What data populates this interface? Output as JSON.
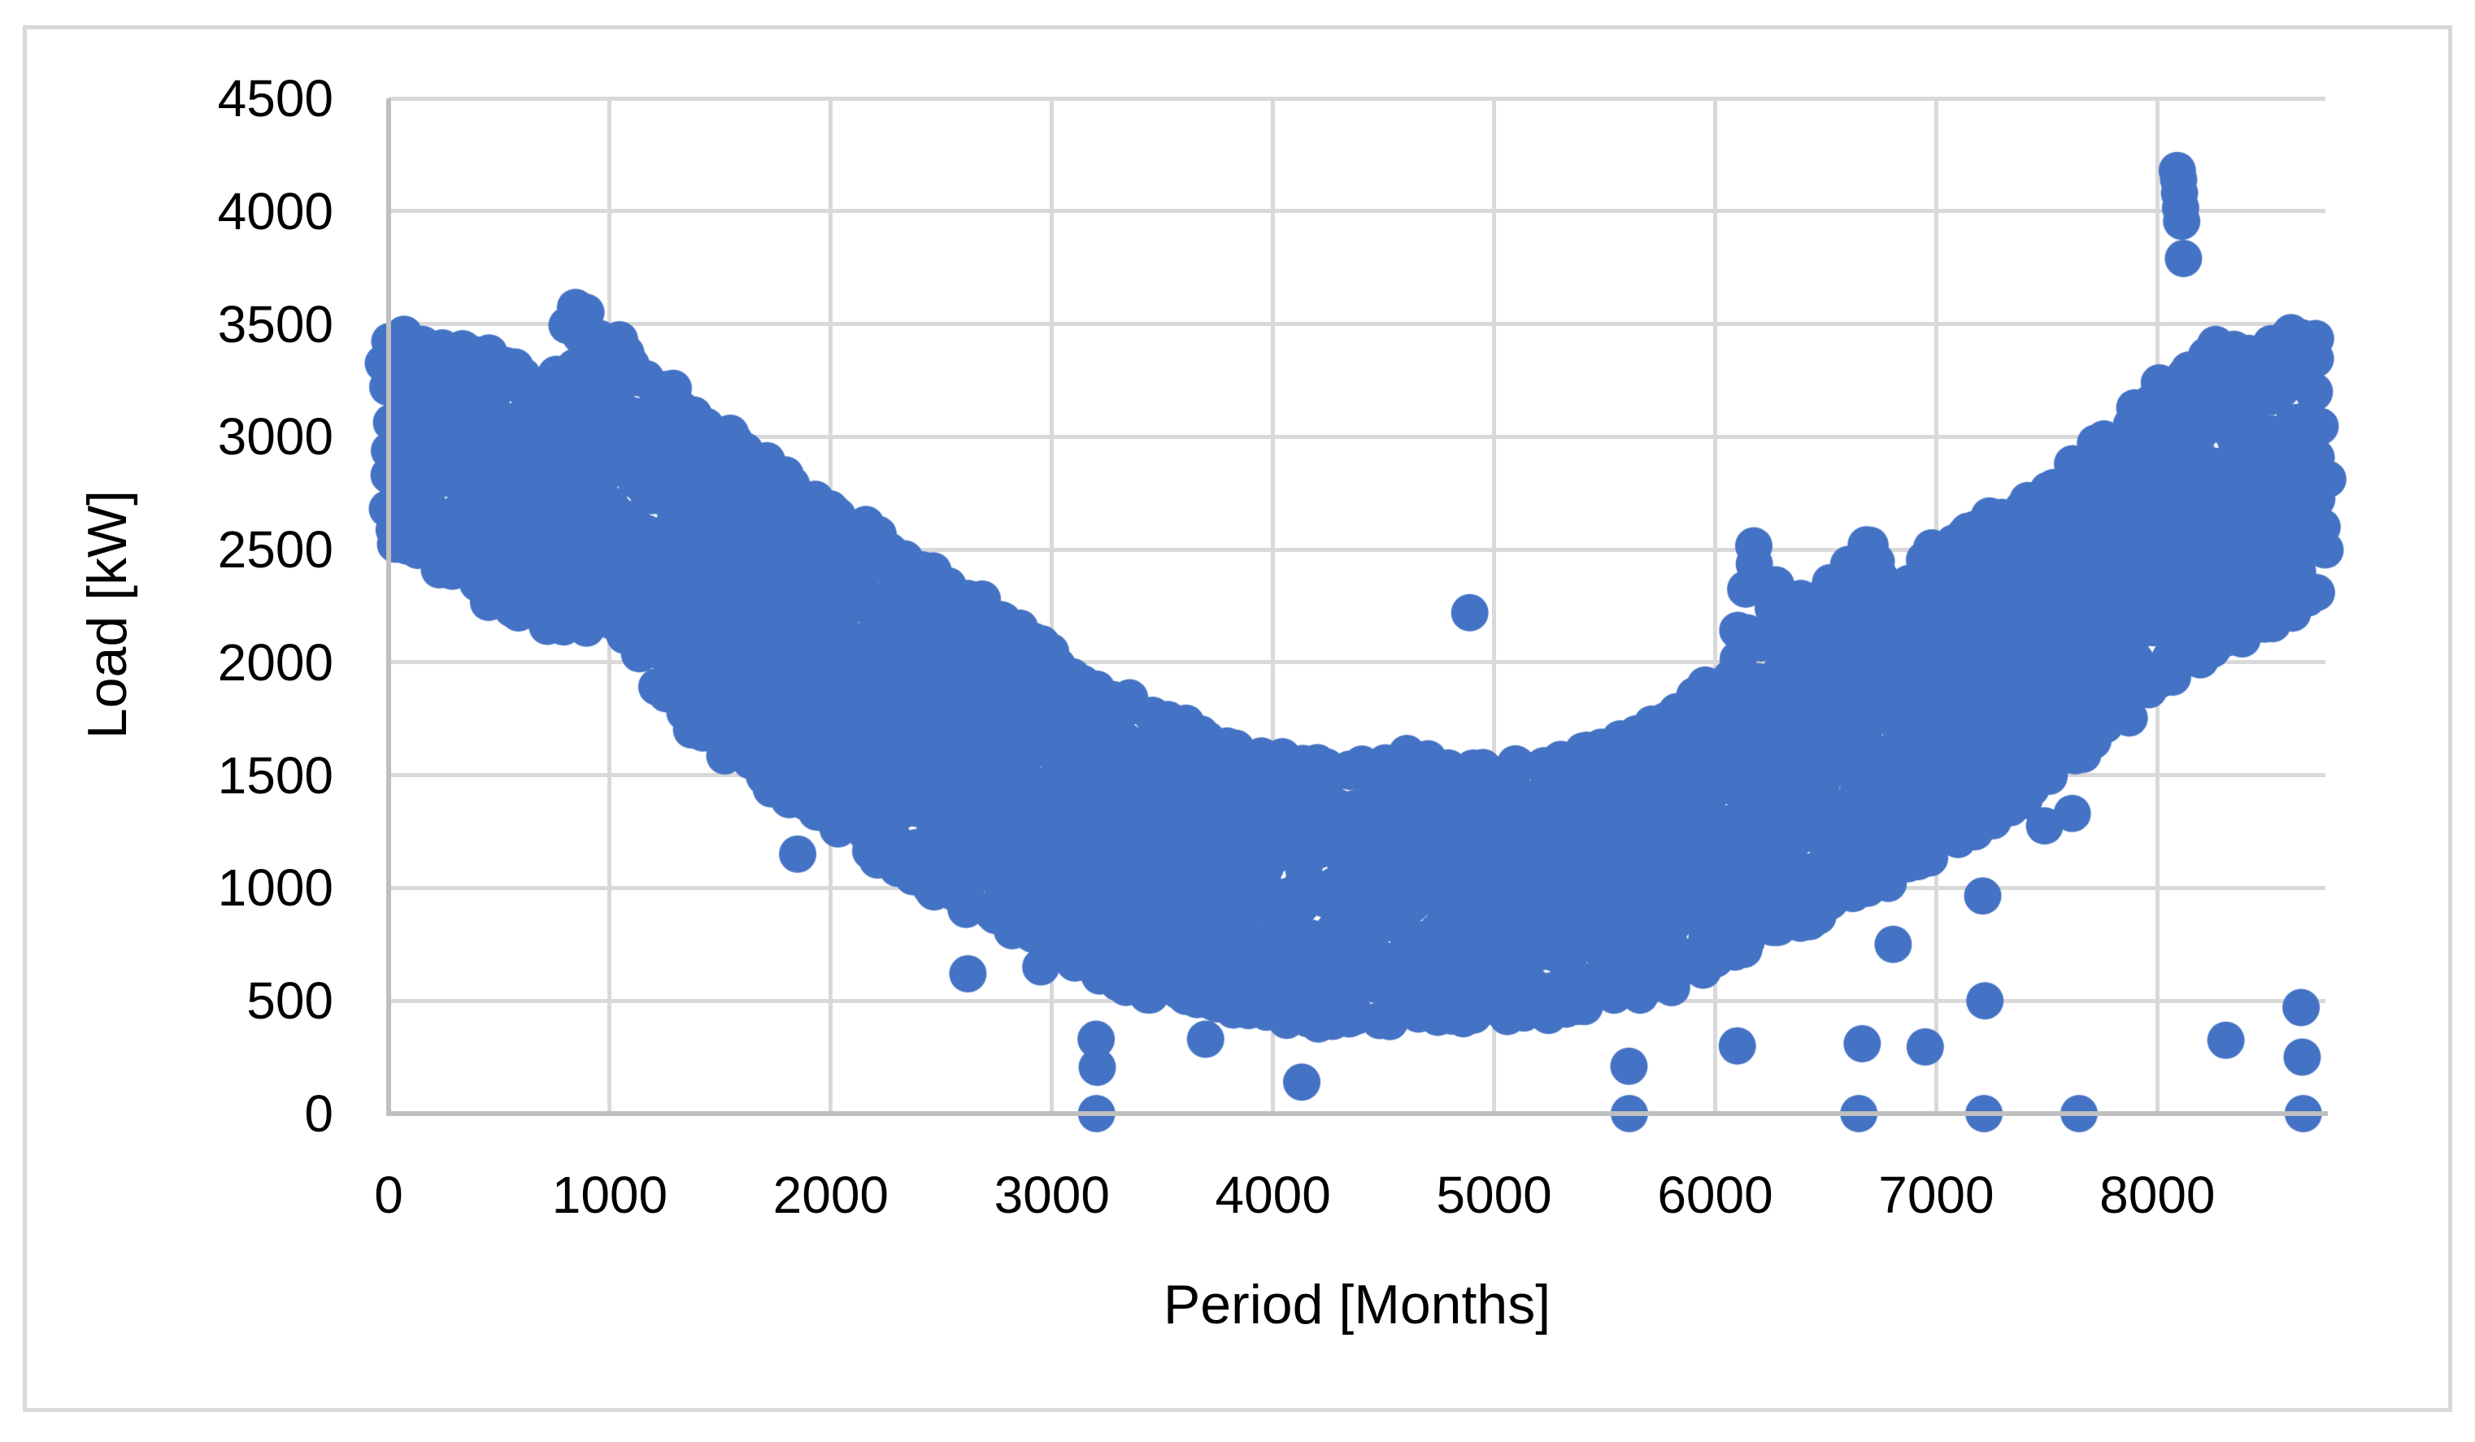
{
  "chart_data": {
    "type": "scatter",
    "title": "",
    "xlabel": "Period [Months]",
    "ylabel": "Load [kW]",
    "xlim": [
      0,
      8760
    ],
    "ylim": [
      0,
      4500
    ],
    "x_ticks": [
      0,
      1000,
      2000,
      3000,
      4000,
      5000,
      6000,
      7000,
      8000
    ],
    "y_ticks": [
      0,
      500,
      1000,
      1500,
      2000,
      2500,
      3000,
      3500,
      4000,
      4500
    ],
    "grid": true,
    "legend_position": "none",
    "marker": {
      "color": "#4472C4",
      "radius_px": 23
    },
    "dense_band_envelope": {
      "description": "U-shaped dense cloud of hourly load points; [x, y_bottom, y_top] of band in kW",
      "points": [
        [
          0,
          2570,
          3440
        ],
        [
          150,
          2480,
          3410
        ],
        [
          300,
          2390,
          3390
        ],
        [
          450,
          2300,
          3370
        ],
        [
          600,
          2250,
          3310
        ],
        [
          700,
          2200,
          3190
        ],
        [
          780,
          2160,
          3290
        ],
        [
          860,
          2160,
          3560
        ],
        [
          930,
          2180,
          3550
        ],
        [
          1000,
          2200,
          3430
        ],
        [
          1100,
          2060,
          3370
        ],
        [
          1200,
          1900,
          3280
        ],
        [
          1350,
          1760,
          3150
        ],
        [
          1500,
          1640,
          3030
        ],
        [
          1650,
          1530,
          2920
        ],
        [
          1800,
          1430,
          2800
        ],
        [
          1950,
          1330,
          2700
        ],
        [
          2100,
          1230,
          2610
        ],
        [
          2250,
          1140,
          2520
        ],
        [
          2400,
          1060,
          2420
        ],
        [
          2550,
          980,
          2320
        ],
        [
          2700,
          910,
          2230
        ],
        [
          2850,
          840,
          2130
        ],
        [
          3000,
          770,
          2030
        ],
        [
          3150,
          680,
          1930
        ],
        [
          3300,
          600,
          1830
        ],
        [
          3450,
          550,
          1760
        ],
        [
          3600,
          515,
          1700
        ],
        [
          3750,
          485,
          1640
        ],
        [
          3900,
          455,
          1590
        ],
        [
          4050,
          425,
          1555
        ],
        [
          4200,
          420,
          1530
        ],
        [
          4350,
          430,
          1515
        ],
        [
          4500,
          435,
          1560
        ],
        [
          4650,
          440,
          1575
        ],
        [
          4800,
          440,
          1525
        ],
        [
          4950,
          445,
          1505
        ],
        [
          5100,
          450,
          1520
        ],
        [
          5250,
          460,
          1555
        ],
        [
          5400,
          480,
          1580
        ],
        [
          5550,
          520,
          1630
        ],
        [
          5700,
          560,
          1700
        ],
        [
          5850,
          620,
          1790
        ],
        [
          6000,
          690,
          1890
        ],
        [
          6100,
          730,
          1960
        ],
        [
          6180,
          770,
          2550
        ],
        [
          6260,
          810,
          2340
        ],
        [
          6400,
          860,
          2250
        ],
        [
          6550,
          920,
          2330
        ],
        [
          6700,
          1000,
          2540
        ],
        [
          6820,
          1070,
          2320
        ],
        [
          6950,
          1140,
          2480
        ],
        [
          7100,
          1210,
          2550
        ],
        [
          7250,
          1310,
          2630
        ],
        [
          7400,
          1410,
          2710
        ],
        [
          7550,
          1520,
          2810
        ],
        [
          7700,
          1640,
          2930
        ],
        [
          7850,
          1770,
          3070
        ],
        [
          8000,
          1910,
          3210
        ],
        [
          8150,
          2010,
          3310
        ],
        [
          8300,
          2090,
          3400
        ],
        [
          8450,
          2150,
          3340
        ],
        [
          8600,
          2240,
          3480
        ],
        [
          8720,
          2310,
          3450
        ],
        [
          8760,
          2350,
          3420
        ]
      ]
    },
    "outliers_low": [
      [
        1850,
        1150
      ],
      [
        2620,
        620
      ],
      [
        2950,
        650
      ],
      [
        3200,
        330
      ],
      [
        3205,
        205
      ],
      [
        3202,
        0
      ],
      [
        3695,
        330
      ],
      [
        4130,
        140
      ],
      [
        5610,
        210
      ],
      [
        5612,
        0
      ],
      [
        6100,
        300
      ],
      [
        6650,
        0
      ],
      [
        6665,
        310
      ],
      [
        6805,
        750
      ],
      [
        6950,
        295
      ],
      [
        7210,
        965
      ],
      [
        7216,
        0
      ],
      [
        7220,
        500
      ],
      [
        7490,
        1275
      ],
      [
        7615,
        1330
      ],
      [
        7646,
        0
      ],
      [
        8310,
        325
      ],
      [
        8650,
        470
      ],
      [
        8655,
        250
      ],
      [
        8660,
        0
      ]
    ],
    "outliers_high": [
      [
        4890,
        2220
      ],
      [
        8090,
        4180
      ],
      [
        8096,
        4140
      ],
      [
        8100,
        4080
      ],
      [
        8105,
        4015
      ],
      [
        8110,
        3955
      ],
      [
        8118,
        3790
      ]
    ]
  },
  "styles": {
    "point_color": "#4472C4",
    "gridline_color": "#D9D9D9",
    "axis_line_color": "#BFBFBF",
    "border_color": "#D9D9D9",
    "text_color": "#000000",
    "background": "#FFFFFF"
  }
}
